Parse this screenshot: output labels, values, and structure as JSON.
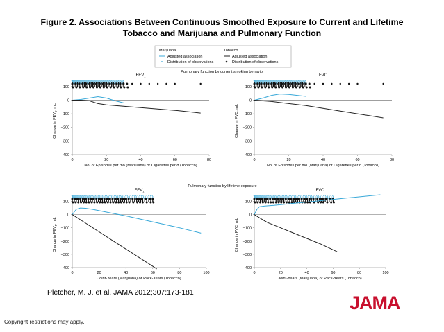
{
  "figure": {
    "title_line1": "Figure 2. Associations Between Continuous Smoothed Exposure to Current and Lifetime",
    "title_line2": "Tobacco and Marijuana and Pulmonary Function",
    "citation": "Pletcher, M. J. et al. JAMA 2012;307:173-181",
    "logo": "JAMA",
    "copyright": "Copyright restrictions may apply."
  },
  "legend": {
    "groups": [
      {
        "name": "Marijuana",
        "line_label": "Adjusted association",
        "dist_label": "Distribution of observations",
        "color": "#38a8d8"
      },
      {
        "name": "Tobacco",
        "line_label": "Adjusted association",
        "dist_label": "Distribution of observations",
        "color": "#222222"
      }
    ]
  },
  "sections": {
    "top": "Pulmonary function by current smoking behavior",
    "bottom": "Pulmonary function by lifetime exposure"
  },
  "chart_data": [
    {
      "type": "line",
      "title": "FEV1",
      "ylabel": "Change in FEV1, mL",
      "xlabel": "No. of Episodes per mo (Marijuana) or Cigarettes per d (Tobacco)",
      "xlim": [
        0,
        80
      ],
      "ylim": [
        -400,
        150
      ],
      "xticks": [
        0,
        20,
        40,
        60,
        80
      ],
      "yticks": [
        100,
        0,
        -100,
        -200,
        -300,
        -400
      ],
      "series": [
        {
          "name": "Marijuana",
          "color": "#38a8d8",
          "x": [
            0,
            5,
            10,
            15,
            20,
            25,
            30
          ],
          "y": [
            0,
            5,
            15,
            25,
            15,
            -5,
            -20
          ]
        },
        {
          "name": "Tobacco",
          "color": "#222222",
          "x": [
            0,
            5,
            10,
            15,
            20,
            30,
            40,
            50,
            60,
            70,
            75
          ],
          "y": [
            0,
            0,
            -5,
            -25,
            -35,
            -45,
            -55,
            -65,
            -75,
            -88,
            -95
          ]
        }
      ],
      "dist_marijuana_max": 30,
      "dist_tobacco": [
        0,
        2,
        4,
        6,
        8,
        10,
        12,
        14,
        16,
        18,
        20,
        22,
        24,
        26,
        28,
        30,
        32,
        35,
        40,
        45,
        50,
        55,
        60,
        75
      ]
    },
    {
      "type": "line",
      "title": "FVC",
      "ylabel": "Change in FVC, mL",
      "xlabel": "No. of Episodes per mo (Marijuana) or Cigarettes per d (Tobacco)",
      "xlim": [
        0,
        80
      ],
      "ylim": [
        -400,
        150
      ],
      "xticks": [
        0,
        20,
        40,
        60,
        80
      ],
      "yticks": [
        100,
        0,
        -100,
        -200,
        -300,
        -400
      ],
      "series": [
        {
          "name": "Marijuana",
          "color": "#38a8d8",
          "x": [
            0,
            5,
            10,
            15,
            20,
            25,
            30
          ],
          "y": [
            0,
            15,
            35,
            45,
            42,
            35,
            28
          ]
        },
        {
          "name": "Tobacco",
          "color": "#222222",
          "x": [
            0,
            10,
            20,
            30,
            40,
            50,
            60,
            70,
            75
          ],
          "y": [
            0,
            -10,
            -25,
            -40,
            -60,
            -80,
            -100,
            -120,
            -130
          ]
        }
      ],
      "dist_marijuana_max": 30,
      "dist_tobacco": [
        0,
        2,
        4,
        6,
        8,
        10,
        12,
        14,
        16,
        18,
        20,
        22,
        24,
        26,
        28,
        30,
        32,
        35,
        40,
        45,
        50,
        55,
        60,
        75
      ]
    },
    {
      "type": "line",
      "title": "FEV1",
      "ylabel": "Change in FEV1, mL",
      "xlabel": "Joint-Years (Marijuana) or Pack-Years (Tobacco)",
      "xlim": [
        0,
        100
      ],
      "ylim": [
        -400,
        150
      ],
      "xticks": [
        0,
        20,
        40,
        60,
        80,
        100
      ],
      "yticks": [
        100,
        0,
        -100,
        -200,
        -300,
        -400
      ],
      "series": [
        {
          "name": "Marijuana",
          "color": "#38a8d8",
          "x": [
            0,
            3,
            6,
            10,
            15,
            20,
            30,
            40,
            60,
            80,
            96
          ],
          "y": [
            0,
            40,
            50,
            48,
            40,
            30,
            10,
            -10,
            -55,
            -100,
            -140
          ]
        },
        {
          "name": "Tobacco",
          "color": "#222222",
          "x": [
            0,
            10,
            20,
            30,
            40,
            50,
            60,
            63
          ],
          "y": [
            0,
            -65,
            -130,
            -195,
            -260,
            -325,
            -390,
            -410
          ]
        }
      ],
      "dist_marijuana_max": 60,
      "dist_tobacco": [
        0,
        2,
        4,
        6,
        8,
        10,
        12,
        14,
        16,
        18,
        20,
        22,
        24,
        26,
        28,
        30,
        32,
        34,
        36,
        38,
        40,
        42,
        45,
        48,
        50,
        52,
        55,
        58,
        60
      ]
    },
    {
      "type": "line",
      "title": "FVC",
      "ylabel": "Change in FVC, mL",
      "xlabel": "Joint-Years (Marijuana) or Pack-Years (Tobacco)",
      "xlim": [
        0,
        100
      ],
      "ylim": [
        -400,
        150
      ],
      "xticks": [
        0,
        20,
        40,
        60,
        80,
        100
      ],
      "yticks": [
        100,
        0,
        -100,
        -200,
        -300,
        -400
      ],
      "series": [
        {
          "name": "Marijuana",
          "color": "#38a8d8",
          "x": [
            0,
            2,
            4,
            8,
            15,
            30,
            50,
            70,
            96
          ],
          "y": [
            0,
            40,
            60,
            65,
            70,
            85,
            105,
            125,
            150
          ]
        },
        {
          "name": "Tobacco",
          "color": "#222222",
          "x": [
            0,
            5,
            10,
            20,
            30,
            40,
            50,
            63
          ],
          "y": [
            0,
            -30,
            -60,
            -100,
            -140,
            -180,
            -220,
            -280
          ]
        }
      ],
      "dist_marijuana_max": 60,
      "dist_tobacco": [
        0,
        2,
        4,
        6,
        8,
        10,
        12,
        14,
        16,
        18,
        20,
        22,
        24,
        26,
        28,
        30,
        32,
        34,
        36,
        38,
        40,
        42,
        45,
        48,
        50,
        52,
        55,
        58,
        60
      ]
    }
  ]
}
